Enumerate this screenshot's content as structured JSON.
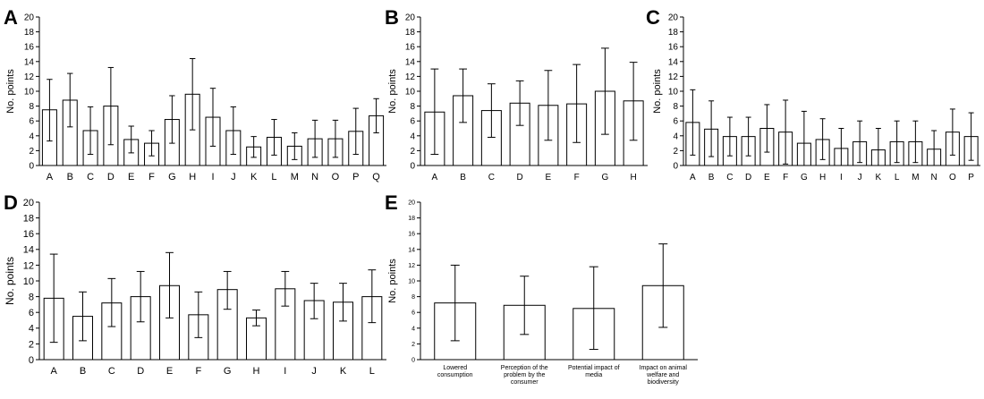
{
  "chart_data": [
    {
      "panel": "A",
      "type": "bar",
      "ylabel": "No. points",
      "ylim": [
        0,
        20
      ],
      "yticks": [
        0,
        2,
        4,
        6,
        8,
        10,
        12,
        14,
        16,
        18,
        20
      ],
      "categories": [
        "A",
        "B",
        "C",
        "D",
        "E",
        "F",
        "G",
        "H",
        "I",
        "J",
        "K",
        "L",
        "M",
        "N",
        "O",
        "P",
        "Q"
      ],
      "values": [
        7.5,
        8.8,
        4.7,
        8.0,
        3.5,
        3.0,
        6.2,
        9.6,
        6.5,
        4.7,
        2.5,
        3.8,
        2.6,
        3.6,
        3.6,
        4.6,
        6.7
      ],
      "error_upper": [
        11.6,
        12.4,
        7.9,
        13.2,
        5.3,
        4.7,
        9.4,
        14.4,
        10.4,
        7.9,
        3.9,
        6.2,
        4.4,
        6.1,
        6.1,
        7.7,
        9.0
      ],
      "error_lower": [
        3.3,
        5.2,
        1.5,
        2.8,
        1.7,
        1.3,
        3.0,
        4.8,
        2.6,
        1.5,
        1.1,
        1.4,
        0.8,
        1.1,
        1.1,
        1.5,
        4.4
      ]
    },
    {
      "panel": "B",
      "type": "bar",
      "ylabel": "No. points",
      "ylim": [
        0,
        20
      ],
      "yticks": [
        0,
        2,
        4,
        6,
        8,
        10,
        12,
        14,
        16,
        18,
        20
      ],
      "categories": [
        "A",
        "B",
        "C",
        "D",
        "E",
        "F",
        "G",
        "H"
      ],
      "values": [
        7.2,
        9.4,
        7.4,
        8.4,
        8.1,
        8.3,
        10.0,
        8.7
      ],
      "error_upper": [
        13.0,
        13.0,
        11.0,
        11.4,
        12.8,
        13.6,
        15.8,
        13.9
      ],
      "error_lower": [
        1.5,
        5.8,
        3.8,
        5.4,
        3.4,
        3.1,
        4.2,
        3.4
      ]
    },
    {
      "panel": "C",
      "type": "bar",
      "ylabel": "No. points",
      "ylim": [
        0,
        20
      ],
      "yticks": [
        0,
        2,
        4,
        6,
        8,
        10,
        12,
        14,
        16,
        18,
        20
      ],
      "categories": [
        "A",
        "B",
        "C",
        "D",
        "E",
        "F",
        "G",
        "H",
        "I",
        "J",
        "K",
        "L",
        "M",
        "N",
        "O",
        "P"
      ],
      "values": [
        5.8,
        4.9,
        3.9,
        3.9,
        5.0,
        4.5,
        3.0,
        3.5,
        2.3,
        3.2,
        2.1,
        3.2,
        3.2,
        2.2,
        4.5,
        3.9
      ],
      "error_upper": [
        10.2,
        8.7,
        6.5,
        6.5,
        8.2,
        8.8,
        7.3,
        6.3,
        5.0,
        6.0,
        5.0,
        6.0,
        6.0,
        4.7,
        7.6,
        7.1
      ],
      "error_lower": [
        1.4,
        1.2,
        1.3,
        1.3,
        1.8,
        0.2,
        0.0,
        0.8,
        0.0,
        0.4,
        0.0,
        0.4,
        0.4,
        0.0,
        1.4,
        0.7
      ]
    },
    {
      "panel": "D",
      "type": "bar",
      "ylabel": "No. points",
      "ylim": [
        0,
        20
      ],
      "yticks": [
        0,
        2,
        4,
        6,
        8,
        10,
        12,
        14,
        16,
        18,
        20
      ],
      "categories": [
        "A",
        "B",
        "C",
        "D",
        "E",
        "F",
        "G",
        "H",
        "I",
        "J",
        "K",
        "L"
      ],
      "values": [
        7.8,
        5.5,
        7.2,
        8.0,
        9.4,
        5.7,
        8.9,
        5.3,
        9.0,
        7.5,
        7.3,
        8.0
      ],
      "error_upper": [
        13.4,
        8.6,
        10.3,
        11.2,
        13.6,
        8.6,
        11.2,
        6.3,
        11.2,
        9.7,
        9.7,
        11.4
      ],
      "error_lower": [
        2.2,
        2.4,
        4.2,
        4.8,
        5.3,
        2.8,
        6.4,
        4.3,
        6.8,
        5.2,
        4.9,
        4.7
      ]
    },
    {
      "panel": "E",
      "type": "bar",
      "ylabel": "No. points",
      "ylim": [
        0,
        20
      ],
      "yticks": [
        0,
        2,
        4,
        6,
        8,
        10,
        12,
        14,
        16,
        18,
        20
      ],
      "categories": [
        [
          "Lowered",
          "consumption"
        ],
        [
          "Perception of the",
          "problem by the",
          "consumer"
        ],
        [
          "Potential impact of",
          "media"
        ],
        [
          "Impact on animal",
          "welfare and",
          "biodiversity"
        ]
      ],
      "values": [
        7.2,
        6.9,
        6.5,
        9.4
      ],
      "error_upper": [
        12.0,
        10.6,
        11.8,
        14.7
      ],
      "error_lower": [
        2.4,
        3.2,
        1.3,
        4.1
      ]
    }
  ]
}
